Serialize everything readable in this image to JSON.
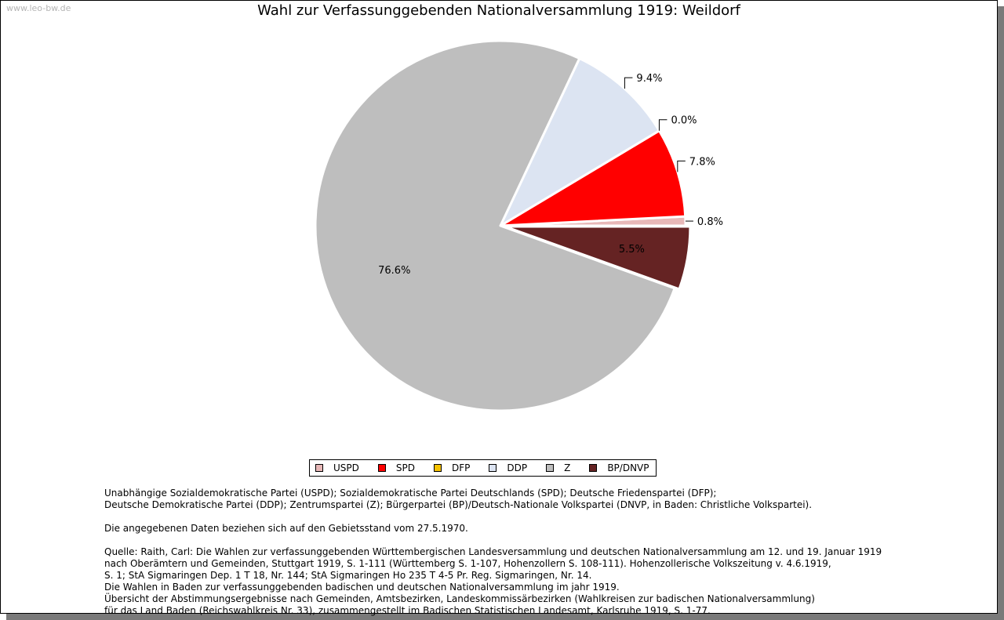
{
  "watermark": "www.leo-bw.de",
  "chart_data": {
    "type": "pie",
    "title": "Wahl zur Verfassunggebenden Nationalversammlung 1919: Weildorf",
    "slices": [
      {
        "name": "USPD",
        "value": 0.8,
        "label": "0.8%",
        "color": "#e8b8b8"
      },
      {
        "name": "SPD",
        "value": 7.8,
        "label": "7.8%",
        "color": "#ff0000"
      },
      {
        "name": "DFP",
        "value": 0.0,
        "label": "0.0%",
        "color": "#f5c200"
      },
      {
        "name": "DDP",
        "value": 9.4,
        "label": "9.4%",
        "color": "#dce4f2"
      },
      {
        "name": "Z",
        "value": 76.6,
        "label": "76.6%",
        "color": "#bebebe"
      },
      {
        "name": "BP/DNVP",
        "value": 5.5,
        "label": "5.5%",
        "color": "#652323"
      }
    ],
    "legend_position": "bottom"
  },
  "notes": [
    "Unabhängige Sozialdemokratische Partei (USPD); Sozialdemokratische Partei Deutschlands (SPD); Deutsche Friedenspartei (DFP);",
    "Deutsche Demokratische Partei (DDP); Zentrumspartei (Z); Bürgerpartei (BP)/Deutsch-Nationale Volkspartei (DNVP, in Baden: Christliche Volkspartei).",
    "",
    "Die angegebenen Daten beziehen sich auf den Gebietsstand vom 27.5.1970.",
    "",
    "Quelle: Raith, Carl: Die Wahlen zur verfassunggebenden Württembergischen Landesversammlung und deutschen Nationalversammlung am 12. und 19. Januar 1919",
    "nach Oberämtern und Gemeinden, Stuttgart 1919, S. 1-111 (Württemberg S. 1-107, Hohenzollern S. 108-111). Hohenzollerische Volkszeitung v. 4.6.1919,",
    "S. 1; StA Sigmaringen Dep. 1 T 18, Nr. 144; StA Sigmaringen Ho 235 T 4-5 Pr. Reg. Sigmaringen, Nr. 14.",
    "Die Wahlen in Baden zur verfassunggebenden badischen und deutschen Nationalversammlung im jahr 1919.",
    "Übersicht der Abstimmungsergebnisse nach Gemeinden, Amtsbezirken, Landeskommissärbezirken (Wahlkreisen zur badischen Nationalversammlung)",
    "für das Land Baden (Reichswahlkreis Nr. 33), zusammengestellt im Badischen Statistischen Landesamt, Karlsruhe 1919, S. 1-77."
  ]
}
